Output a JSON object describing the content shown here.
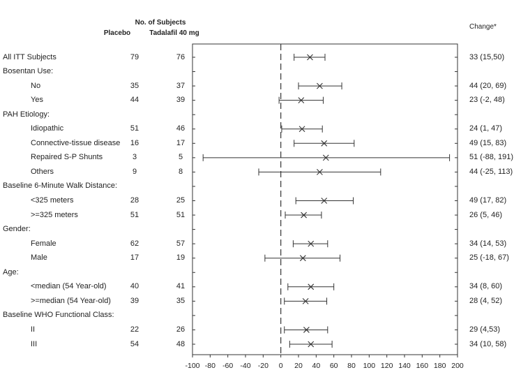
{
  "header": {
    "col_title": "No. of Subjects",
    "col_placebo": "Placebo",
    "col_tadalafil": "Tadalafil 40 mg",
    "change_title": "Change*"
  },
  "chart_data": {
    "type": "forest",
    "xlim": [
      -100,
      200
    ],
    "xticks": [
      -100,
      -80,
      -60,
      -40,
      -20,
      0,
      20,
      40,
      60,
      80,
      100,
      120,
      140,
      160,
      180,
      200
    ],
    "reference_line": 0,
    "rows": [
      {
        "label": "All ITT Subjects",
        "kind": "row",
        "placebo": "79",
        "tadalafil": "76",
        "est": 33,
        "lo": 15,
        "hi": 50,
        "text": "33 (15,50)"
      },
      {
        "label": "Bosentan Use:",
        "kind": "group"
      },
      {
        "label": "No",
        "kind": "sub",
        "placebo": "35",
        "tadalafil": "37",
        "est": 44,
        "lo": 20,
        "hi": 69,
        "text": "44 (20, 69)"
      },
      {
        "label": "Yes",
        "kind": "sub",
        "placebo": "44",
        "tadalafil": "39",
        "est": 23,
        "lo": -2,
        "hi": 48,
        "text": "23 (-2, 48)"
      },
      {
        "label": "PAH Etiology:",
        "kind": "group"
      },
      {
        "label": "Idiopathic",
        "kind": "sub",
        "placebo": "51",
        "tadalafil": "46",
        "est": 24,
        "lo": 1,
        "hi": 47,
        "text": "24 (1, 47)"
      },
      {
        "label": "Connective-tissue disease",
        "kind": "sub",
        "placebo": "16",
        "tadalafil": "17",
        "est": 49,
        "lo": 15,
        "hi": 83,
        "text": "49 (15, 83)"
      },
      {
        "label": "Repaired S-P Shunts",
        "kind": "sub",
        "placebo": "3",
        "tadalafil": "5",
        "est": 51,
        "lo": -88,
        "hi": 191,
        "text": "51 (-88, 191)"
      },
      {
        "label": "Others",
        "kind": "sub",
        "placebo": "9",
        "tadalafil": "8",
        "est": 44,
        "lo": -25,
        "hi": 113,
        "text": "44 (-25, 113)"
      },
      {
        "label": "Baseline 6-Minute Walk Distance:",
        "kind": "group"
      },
      {
        "label": "<325 meters",
        "kind": "sub",
        "placebo": "28",
        "tadalafil": "25",
        "est": 49,
        "lo": 17,
        "hi": 82,
        "text": "49 (17, 82)"
      },
      {
        "label": ">=325 meters",
        "kind": "sub",
        "placebo": "51",
        "tadalafil": "51",
        "est": 26,
        "lo": 5,
        "hi": 46,
        "text": "26 (5, 46)"
      },
      {
        "label": "Gender:",
        "kind": "group"
      },
      {
        "label": "Female",
        "kind": "sub",
        "placebo": "62",
        "tadalafil": "57",
        "est": 34,
        "lo": 14,
        "hi": 53,
        "text": "34 (14, 53)"
      },
      {
        "label": "Male",
        "kind": "sub",
        "placebo": "17",
        "tadalafil": "19",
        "est": 25,
        "lo": -18,
        "hi": 67,
        "text": "25 (-18, 67)"
      },
      {
        "label": "Age:",
        "kind": "group"
      },
      {
        "label": "<median (54 Year-old)",
        "kind": "sub",
        "placebo": "40",
        "tadalafil": "41",
        "est": 34,
        "lo": 8,
        "hi": 60,
        "text": "34 (8, 60)"
      },
      {
        "label": ">=median (54 Year-old)",
        "kind": "sub",
        "placebo": "39",
        "tadalafil": "35",
        "est": 28,
        "lo": 4,
        "hi": 52,
        "text": "28 (4, 52)"
      },
      {
        "label": "Baseline WHO Functional Class:",
        "kind": "group"
      },
      {
        "label": "II",
        "kind": "sub",
        "placebo": "22",
        "tadalafil": "26",
        "est": 29,
        "lo": 4,
        "hi": 53,
        "text": "29 (4,53)"
      },
      {
        "label": "III",
        "kind": "sub",
        "placebo": "54",
        "tadalafil": "48",
        "est": 34,
        "lo": 10,
        "hi": 58,
        "text": "34 (10, 58)"
      }
    ]
  }
}
